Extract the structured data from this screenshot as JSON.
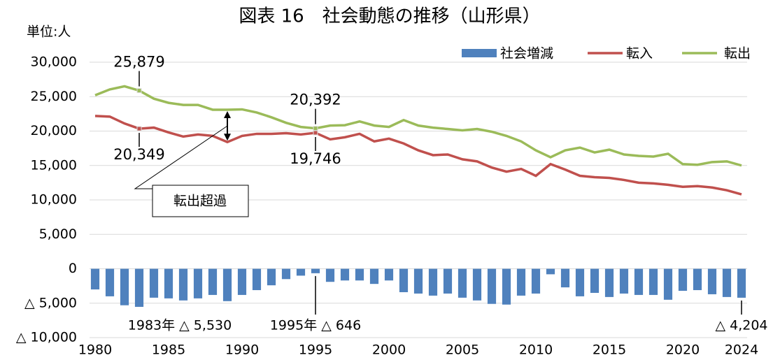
{
  "chart_data": {
    "type": "bar-line",
    "title": "図表 16　社会動態の推移（山形県）",
    "ylabel": "単位:人",
    "x": [
      1980,
      1981,
      1982,
      1983,
      1984,
      1985,
      1986,
      1987,
      1988,
      1989,
      1990,
      1991,
      1992,
      1993,
      1994,
      1995,
      1996,
      1997,
      1998,
      1999,
      2000,
      2001,
      2002,
      2003,
      2004,
      2005,
      2006,
      2007,
      2008,
      2009,
      2010,
      2011,
      2012,
      2013,
      2014,
      2015,
      2016,
      2017,
      2018,
      2019,
      2020,
      2021,
      2022,
      2023,
      2024
    ],
    "series": [
      {
        "name": "社会増減",
        "type": "bar",
        "color": "#4f81bd",
        "values": [
          -3000,
          -4000,
          -5300,
          -5530,
          -4200,
          -4300,
          -4600,
          -4300,
          -3800,
          -4700,
          -3800,
          -3100,
          -2400,
          -1500,
          -1000,
          -646,
          -1900,
          -1700,
          -1700,
          -2200,
          -1700,
          -3400,
          -3600,
          -3900,
          -3600,
          -4200,
          -4600,
          -5100,
          -5200,
          -3900,
          -3600,
          -800,
          -2700,
          -4000,
          -3500,
          -4100,
          -3600,
          -3800,
          -3800,
          -4500,
          -3200,
          -3100,
          -3700,
          -4100,
          -4204
        ],
        "value_labels": [
          null,
          null,
          null,
          "1983年 △ 5,530",
          null,
          null,
          null,
          null,
          null,
          null,
          null,
          null,
          null,
          null,
          null,
          "1995年 △ 646",
          null,
          null,
          null,
          null,
          null,
          null,
          null,
          null,
          null,
          null,
          null,
          null,
          null,
          null,
          null,
          null,
          null,
          null,
          null,
          null,
          null,
          null,
          null,
          null,
          null,
          null,
          null,
          null,
          "△ 4,204"
        ]
      },
      {
        "name": "転入",
        "type": "line",
        "color": "#c0504d",
        "values": [
          22200,
          22100,
          21100,
          20349,
          20500,
          19800,
          19200,
          19500,
          19300,
          18400,
          19300,
          19600,
          19600,
          19700,
          19500,
          19746,
          18800,
          19100,
          19600,
          18500,
          18900,
          18200,
          17200,
          16500,
          16600,
          15900,
          15600,
          14700,
          14100,
          14500,
          13500,
          15200,
          14400,
          13500,
          13300,
          13200,
          12900,
          12500,
          12400,
          12200,
          11900,
          12000,
          11800,
          11400,
          10800
        ],
        "value_labels": [
          null,
          null,
          null,
          "20,349",
          null,
          null,
          null,
          null,
          null,
          null,
          null,
          null,
          null,
          null,
          null,
          "19,746",
          null,
          null,
          null,
          null,
          null,
          null,
          null,
          null,
          null,
          null,
          null,
          null,
          null,
          null,
          null,
          null,
          null,
          null,
          null,
          null,
          null,
          null,
          null,
          null,
          null,
          null,
          null,
          null,
          null
        ]
      },
      {
        "name": "転出",
        "type": "line",
        "color": "#9bbb59",
        "values": [
          25200,
          26050,
          26500,
          25879,
          24700,
          24100,
          23800,
          23800,
          23100,
          23100,
          23150,
          22700,
          22000,
          21200,
          20600,
          20392,
          20800,
          20850,
          21400,
          20800,
          20600,
          21600,
          20800,
          20500,
          20300,
          20100,
          20300,
          19900,
          19300,
          18500,
          17200,
          16200,
          17200,
          17600,
          16900,
          17300,
          16600,
          16400,
          16300,
          16700,
          15200,
          15100,
          15500,
          15600,
          15000
        ],
        "value_labels": [
          null,
          null,
          null,
          "25,879",
          null,
          null,
          null,
          null,
          null,
          null,
          null,
          null,
          null,
          null,
          null,
          "20,392",
          null,
          null,
          null,
          null,
          null,
          null,
          null,
          null,
          null,
          null,
          null,
          null,
          null,
          null,
          null,
          null,
          null,
          null,
          null,
          null,
          null,
          null,
          null,
          null,
          null,
          null,
          null,
          null,
          null
        ]
      }
    ],
    "annotation": "転出超過",
    "xlim": [
      1980,
      2024
    ],
    "xticks": [
      1980,
      1985,
      1990,
      1995,
      2000,
      2005,
      2010,
      2015,
      2020,
      2024
    ],
    "ylim": [
      -10000,
      30000
    ],
    "yticks": [
      {
        "value": -10000,
        "label": "△ 10,000"
      },
      {
        "value": -5000,
        "label": "△ 5,000"
      },
      0,
      {
        "value": 5000,
        "label": "5,000"
      },
      {
        "value": 10000,
        "label": "10,000"
      },
      {
        "value": 15000,
        "label": "15,000"
      },
      {
        "value": 20000,
        "label": "20,000"
      },
      {
        "value": 25000,
        "label": "25,000"
      },
      {
        "value": 30000,
        "label": "30,000"
      }
    ],
    "grid": true,
    "legend": "upper right"
  }
}
